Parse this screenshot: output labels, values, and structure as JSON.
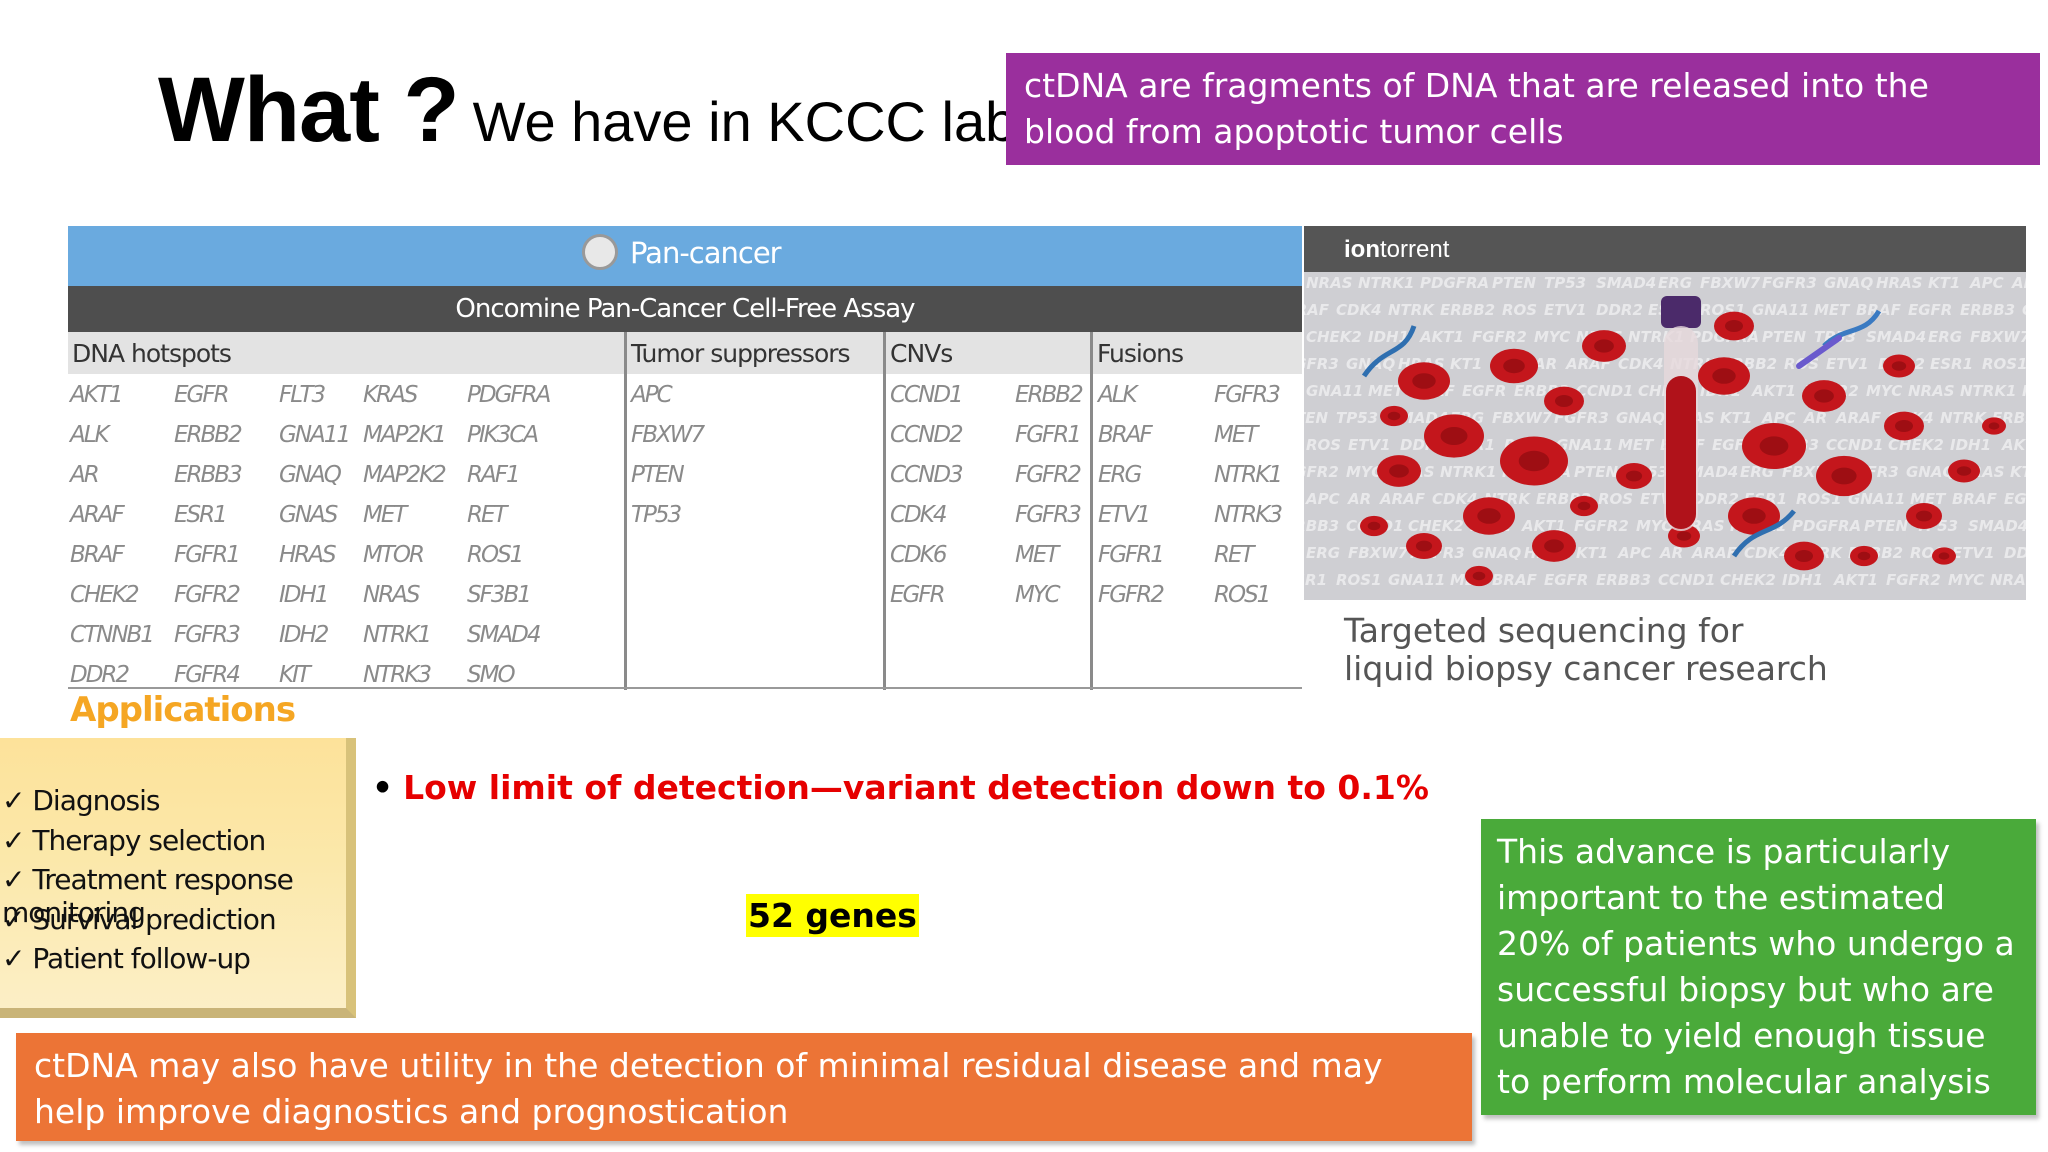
{
  "title": {
    "main": "What ?",
    "sub": "We have in KCCC lab."
  },
  "callouts": {
    "purple": "ctDNA are fragments of DNA that are released into the blood from apoptotic tumor cells",
    "orange": "ctDNA may also have utility in the detection of minimal residual disease and may help improve diagnostics and prognostication",
    "green": "This advance is particularly important to the estimated 20% of patients who undergo a successful biopsy but who are unable to yield enough tissue to perform molecular analysis"
  },
  "assay": {
    "header": "Pan-cancer",
    "subheader": "Oncomine Pan-Cancer Cell-Free Assay",
    "sections": [
      {
        "title": "DNA hotspots",
        "columns": [
          [
            "AKT1",
            "ALK",
            "AR",
            "ARAF",
            "BRAF",
            "CHEK2",
            "CTNNB1",
            "DDR2"
          ],
          [
            "EGFR",
            "ERBB2",
            "ERBB3",
            "ESR1",
            "FGFR1",
            "FGFR2",
            "FGFR3",
            "FGFR4"
          ],
          [
            "FLT3",
            "GNA11",
            "GNAQ",
            "GNAS",
            "HRAS",
            "IDH1",
            "IDH2",
            "KIT"
          ],
          [
            "KRAS",
            "MAP2K1",
            "MAP2K2",
            "MET",
            "MTOR",
            "NRAS",
            "NTRK1",
            "NTRK3"
          ],
          [
            "PDGFRA",
            "PIK3CA",
            "RAF1",
            "RET",
            "ROS1",
            "SF3B1",
            "SMAD4",
            "SMO"
          ]
        ]
      },
      {
        "title": "Tumor suppressors",
        "columns": [
          [
            "APC",
            "FBXW7",
            "PTEN",
            "TP53"
          ]
        ]
      },
      {
        "title": "CNVs",
        "columns": [
          [
            "CCND1",
            "CCND2",
            "CCND3",
            "CDK4",
            "CDK6",
            "EGFR"
          ],
          [
            "ERBB2",
            "FGFR1",
            "FGFR2",
            "FGFR3",
            "MET",
            "MYC"
          ]
        ]
      },
      {
        "title": "Fusions",
        "columns": [
          [
            "ALK",
            "BRAF",
            "ERG",
            "ETV1",
            "FGFR1",
            "FGFR2"
          ],
          [
            "FGFR3",
            "MET",
            "NTRK1",
            "NTRK3",
            "RET",
            "ROS1"
          ]
        ]
      }
    ]
  },
  "ion": {
    "brand_bold": "ion",
    "brand_rest": "torrent",
    "caption_line1": "Targeted sequencing for",
    "caption_line2": "liquid biopsy cancer research",
    "bg_genes": [
      "NRAS",
      "NTRK1",
      "PDGFRA",
      "PTEN",
      "TP53",
      "SMAD4",
      "ERG",
      "FBXW7",
      "FGFR3",
      "GNAQ",
      "HRAS",
      "KT1",
      "APC",
      "AR",
      "ARAF",
      "CDK4",
      "NTRK",
      "ERBB2",
      "ROS",
      "ETV1",
      "DDR2",
      "ESR1",
      "ROS1",
      "GNA11",
      "MET",
      "BRAF",
      "EGFR",
      "ERBB3",
      "CCND1",
      "CHEK2",
      "IDH1",
      "AKT1",
      "FGFR2",
      "MYC"
    ]
  },
  "applications": {
    "title": "Applications",
    "items": [
      "✓ Diagnosis",
      "✓ Therapy selection",
      "✓ Treatment response monitoring",
      "✓ Survival prediction",
      "✓ Patient follow-up"
    ]
  },
  "bullet": {
    "marker": "•",
    "text": "Low limit of detection—variant detection down to 0.1%"
  },
  "genes_label": "52 genes",
  "colors": {
    "purple": "#9a2f9d",
    "orange": "#ec7436",
    "green": "#4aaa3a",
    "assay_blue": "#6aaadf",
    "applications_orange": "#f5a623",
    "highlight": "#ffff00",
    "bullet_red": "#e60000"
  }
}
